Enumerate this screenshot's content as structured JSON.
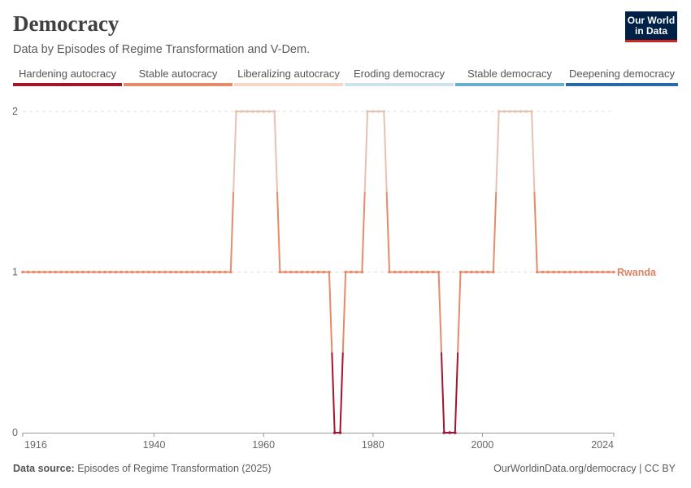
{
  "header": {
    "title": "Democracy",
    "subtitle": "Data by Episodes of Regime Transformation and V-Dem.",
    "logo_line1": "Our World",
    "logo_line2": "in Data"
  },
  "legend": [
    {
      "label": "Hardening autocracy",
      "color": "#a2152f"
    },
    {
      "label": "Stable autocracy",
      "color": "#e8896a"
    },
    {
      "label": "Liberalizing autocracy",
      "color": "#f8d6c5"
    },
    {
      "label": "Eroding democracy",
      "color": "#cce3ee"
    },
    {
      "label": "Stable democracy",
      "color": "#6aafd1"
    },
    {
      "label": "Deepening democracy",
      "color": "#2a6aa8"
    }
  ],
  "footer": {
    "source_label": "Data source:",
    "source_text": "Episodes of Regime Transformation (2025)",
    "credit": "OurWorldinData.org/democracy | CC BY"
  },
  "chart_data": {
    "type": "line",
    "x_ticks": [
      "1916",
      "1940",
      "1960",
      "1980",
      "2000",
      "2024"
    ],
    "y_ticks": [
      "0",
      "1",
      "2"
    ],
    "xlim": [
      1916,
      2024
    ],
    "ylim": [
      0,
      2
    ],
    "series": [
      {
        "name": "Rwanda",
        "label_color": "#e0805f",
        "points": [
          [
            1916,
            1
          ],
          [
            1917,
            1
          ],
          [
            1918,
            1
          ],
          [
            1919,
            1
          ],
          [
            1920,
            1
          ],
          [
            1921,
            1
          ],
          [
            1922,
            1
          ],
          [
            1923,
            1
          ],
          [
            1924,
            1
          ],
          [
            1925,
            1
          ],
          [
            1926,
            1
          ],
          [
            1927,
            1
          ],
          [
            1928,
            1
          ],
          [
            1929,
            1
          ],
          [
            1930,
            1
          ],
          [
            1931,
            1
          ],
          [
            1932,
            1
          ],
          [
            1933,
            1
          ],
          [
            1934,
            1
          ],
          [
            1935,
            1
          ],
          [
            1936,
            1
          ],
          [
            1937,
            1
          ],
          [
            1938,
            1
          ],
          [
            1939,
            1
          ],
          [
            1940,
            1
          ],
          [
            1941,
            1
          ],
          [
            1942,
            1
          ],
          [
            1943,
            1
          ],
          [
            1944,
            1
          ],
          [
            1945,
            1
          ],
          [
            1946,
            1
          ],
          [
            1947,
            1
          ],
          [
            1948,
            1
          ],
          [
            1949,
            1
          ],
          [
            1950,
            1
          ],
          [
            1951,
            1
          ],
          [
            1952,
            1
          ],
          [
            1953,
            1
          ],
          [
            1954,
            1
          ],
          [
            1955,
            2
          ],
          [
            1956,
            2
          ],
          [
            1957,
            2
          ],
          [
            1958,
            2
          ],
          [
            1959,
            2
          ],
          [
            1960,
            2
          ],
          [
            1961,
            2
          ],
          [
            1962,
            2
          ],
          [
            1963,
            1
          ],
          [
            1964,
            1
          ],
          [
            1965,
            1
          ],
          [
            1966,
            1
          ],
          [
            1967,
            1
          ],
          [
            1968,
            1
          ],
          [
            1969,
            1
          ],
          [
            1970,
            1
          ],
          [
            1971,
            1
          ],
          [
            1972,
            1
          ],
          [
            1973,
            0
          ],
          [
            1974,
            0
          ],
          [
            1975,
            1
          ],
          [
            1976,
            1
          ],
          [
            1977,
            1
          ],
          [
            1978,
            1
          ],
          [
            1979,
            2
          ],
          [
            1980,
            2
          ],
          [
            1981,
            2
          ],
          [
            1982,
            2
          ],
          [
            1983,
            1
          ],
          [
            1984,
            1
          ],
          [
            1985,
            1
          ],
          [
            1986,
            1
          ],
          [
            1987,
            1
          ],
          [
            1988,
            1
          ],
          [
            1989,
            1
          ],
          [
            1990,
            1
          ],
          [
            1991,
            1
          ],
          [
            1992,
            1
          ],
          [
            1993,
            0
          ],
          [
            1994,
            0
          ],
          [
            1995,
            0
          ],
          [
            1996,
            1
          ],
          [
            1997,
            1
          ],
          [
            1998,
            1
          ],
          [
            1999,
            1
          ],
          [
            2000,
            1
          ],
          [
            2001,
            1
          ],
          [
            2002,
            1
          ],
          [
            2003,
            2
          ],
          [
            2004,
            2
          ],
          [
            2005,
            2
          ],
          [
            2006,
            2
          ],
          [
            2007,
            2
          ],
          [
            2008,
            2
          ],
          [
            2009,
            2
          ],
          [
            2010,
            1
          ],
          [
            2011,
            1
          ],
          [
            2012,
            1
          ],
          [
            2013,
            1
          ],
          [
            2014,
            1
          ],
          [
            2015,
            1
          ],
          [
            2016,
            1
          ],
          [
            2017,
            1
          ],
          [
            2018,
            1
          ],
          [
            2019,
            1
          ],
          [
            2020,
            1
          ],
          [
            2021,
            1
          ],
          [
            2022,
            1
          ],
          [
            2023,
            1
          ],
          [
            2024,
            1
          ]
        ]
      }
    ],
    "value_colors": {
      "0": "#a2152f",
      "1": "#e8896a",
      "2": "#e5c3b4"
    },
    "grid": true
  }
}
